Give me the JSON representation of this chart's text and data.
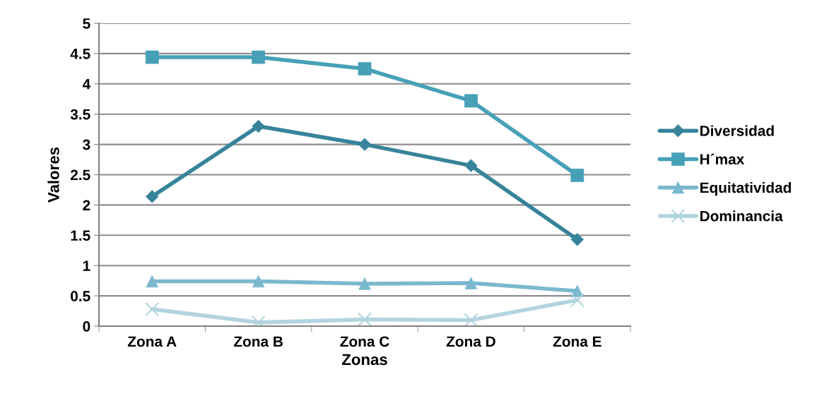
{
  "chart_data": {
    "type": "line",
    "xlabel": "Zonas",
    "ylabel": "Valores",
    "categories": [
      "Zona A",
      "Zona B",
      "Zona C",
      "Zona D",
      "Zona E"
    ],
    "series": [
      {
        "name": "Diversidad",
        "color": "#37849a",
        "marker": "diamond",
        "values": [
          2.14,
          3.3,
          3.0,
          2.65,
          1.43
        ]
      },
      {
        "name": "H´max",
        "color": "#46a0b8",
        "marker": "square",
        "values": [
          4.44,
          4.44,
          4.25,
          3.72,
          2.49
        ]
      },
      {
        "name": "Equitatividad",
        "color": "#7ab8ce",
        "marker": "triangle",
        "values": [
          0.74,
          0.74,
          0.7,
          0.71,
          0.58
        ]
      },
      {
        "name": "Dominancia",
        "color": "#b2d4df",
        "marker": "cross",
        "values": [
          0.28,
          0.06,
          0.11,
          0.1,
          0.43
        ]
      }
    ],
    "ylim": [
      0,
      5
    ],
    "yticks": [
      0,
      0.5,
      1,
      1.5,
      2,
      2.5,
      3,
      3.5,
      4,
      4.5,
      5
    ],
    "grid": "y",
    "legend": "right"
  }
}
